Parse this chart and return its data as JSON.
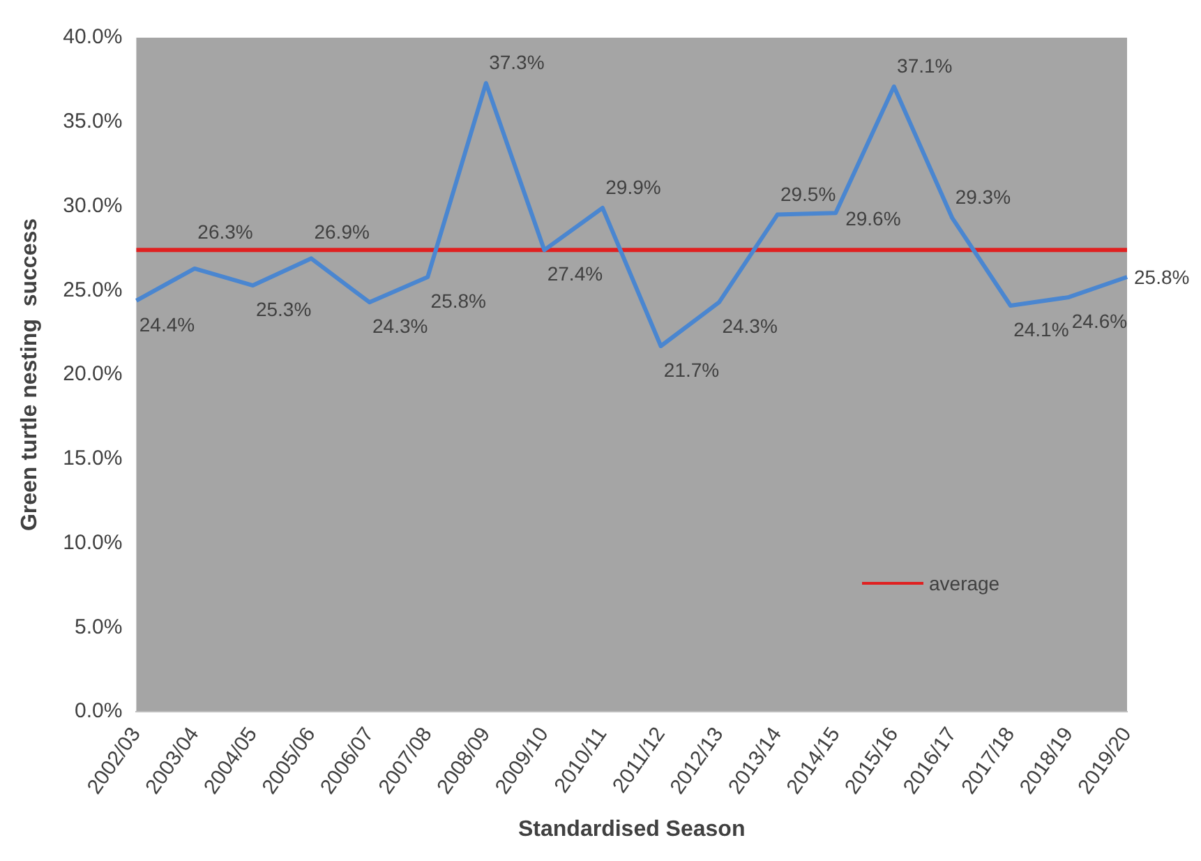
{
  "chart_data": {
    "type": "line",
    "xlabel": "Standardised Season",
    "ylabel": "Green turtle nesting  success",
    "categories": [
      "2002/03",
      "2003/04",
      "2004/05",
      "2005/06",
      "2006/07",
      "2007/08",
      "2008/09",
      "2009/10",
      "2010/11",
      "2011/12",
      "2012/13",
      "2013/14",
      "2014/15",
      "2015/16",
      "2016/17",
      "2017/18",
      "2018/19",
      "2019/20"
    ],
    "series": [
      {
        "color": "#4a86d0",
        "values": [
          24.4,
          26.3,
          25.3,
          26.9,
          24.3,
          25.8,
          37.3,
          27.4,
          29.9,
          21.7,
          24.3,
          29.5,
          29.6,
          37.1,
          29.3,
          24.1,
          24.6,
          25.8
        ],
        "value_labels": [
          "24.4%",
          "26.3%",
          "25.3%",
          "26.9%",
          "24.3%",
          "25.8%",
          "37.3%",
          "27.4%",
          "29.9%",
          "21.7%",
          "24.3%",
          "29.5%",
          "29.6%",
          "37.1%",
          "29.3%",
          "24.1%",
          "24.6%",
          "25.8%"
        ]
      },
      {
        "name": "average",
        "color": "#e02020",
        "values": [
          27.4,
          27.4,
          27.4,
          27.4,
          27.4,
          27.4,
          27.4,
          27.4,
          27.4,
          27.4,
          27.4,
          27.4,
          27.4,
          27.4,
          27.4,
          27.4,
          27.4,
          27.4
        ]
      }
    ],
    "ylim": [
      0,
      40
    ],
    "yticks": [
      {
        "value": 0,
        "label": "0.0%"
      },
      {
        "value": 5,
        "label": "5.0%"
      },
      {
        "value": 10,
        "label": "10.0%"
      },
      {
        "value": 15,
        "label": "15.0%"
      },
      {
        "value": 20,
        "label": "20.0%"
      },
      {
        "value": 25,
        "label": "25.0%"
      },
      {
        "value": 30,
        "label": "30.0%"
      },
      {
        "value": 35,
        "label": "35.0%"
      },
      {
        "value": 40,
        "label": "40.0%"
      }
    ],
    "grid": false,
    "legend": "bottom right",
    "marker": "none",
    "line_style": "solid"
  }
}
